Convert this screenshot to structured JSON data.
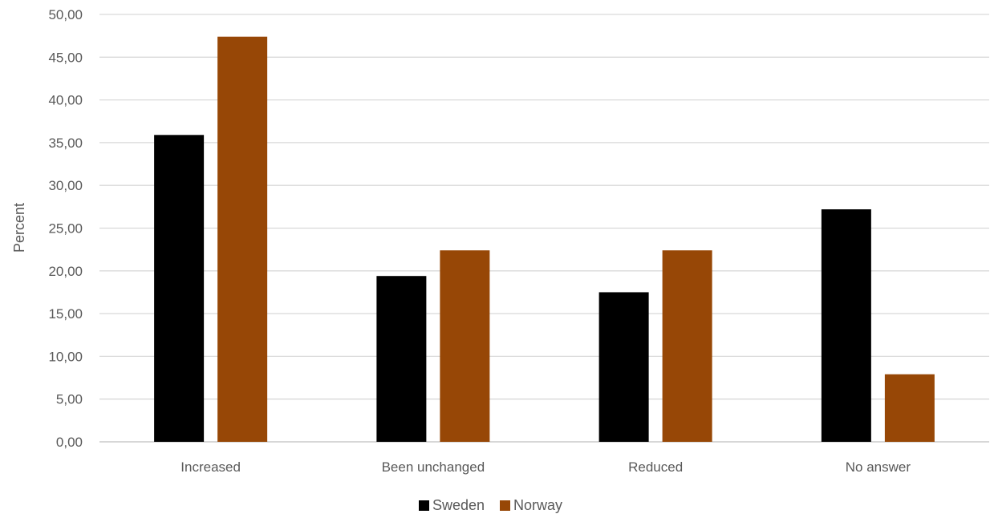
{
  "chart_data": {
    "type": "bar",
    "title": "",
    "xlabel": "",
    "ylabel": "Percent",
    "ylim": [
      0,
      50
    ],
    "ytick_step": 5,
    "ytick_labels": [
      "0,00",
      "5,00",
      "10,00",
      "15,00",
      "20,00",
      "25,00",
      "30,00",
      "35,00",
      "40,00",
      "45,00",
      "50,00"
    ],
    "categories": [
      "Increased",
      "Been unchanged",
      "Reduced",
      "No answer"
    ],
    "series": [
      {
        "name": "Sweden",
        "color": "#000000",
        "values": [
          35.9,
          19.4,
          17.5,
          27.2
        ]
      },
      {
        "name": "Norway",
        "color": "#974706",
        "values": [
          47.4,
          22.4,
          22.4,
          7.9
        ]
      }
    ],
    "grid": true,
    "legend_position": "bottom"
  }
}
